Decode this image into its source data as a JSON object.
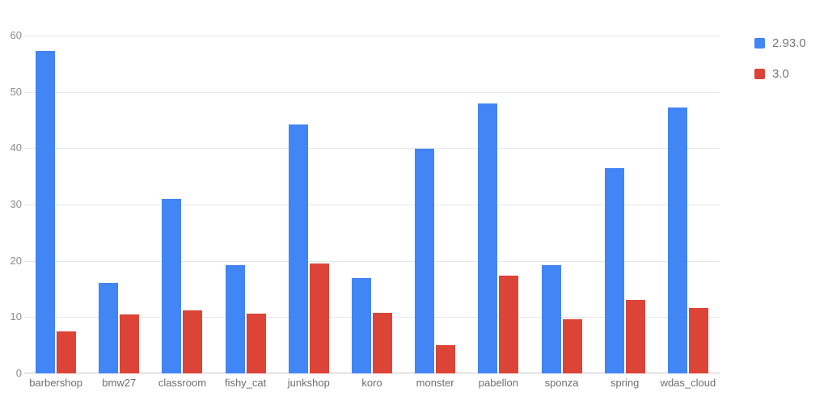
{
  "chart_data": {
    "type": "bar",
    "title": "",
    "xlabel": "",
    "ylabel": "",
    "categories": [
      "barbershop",
      "bmw27",
      "classroom",
      "fishy_cat",
      "junkshop",
      "koro",
      "monster",
      "pabellon",
      "sponza",
      "spring",
      "wdas_cloud"
    ],
    "series": [
      {
        "name": "2.93.0",
        "color": "#4285f4",
        "values": [
          57.3,
          16.1,
          31.0,
          19.3,
          44.2,
          17.0,
          39.9,
          47.9,
          19.2,
          36.5,
          47.2
        ]
      },
      {
        "name": "3.0",
        "color": "#db4437",
        "values": [
          7.4,
          10.5,
          11.2,
          10.7,
          19.5,
          10.8,
          5.0,
          17.4,
          9.6,
          13.1,
          11.6
        ]
      }
    ],
    "ylim": [
      0,
      60
    ],
    "yticks": [
      0,
      10,
      20,
      30,
      40,
      50,
      60
    ],
    "grid": true,
    "legend_position": "right"
  },
  "colors": {
    "background": "#ffffff",
    "gridline": "#e7e7e7",
    "axis_line": "#c9c9c9",
    "tick_label": "#8b8b8b",
    "category_label": "#6e6e6e",
    "legend_text": "#757575"
  }
}
